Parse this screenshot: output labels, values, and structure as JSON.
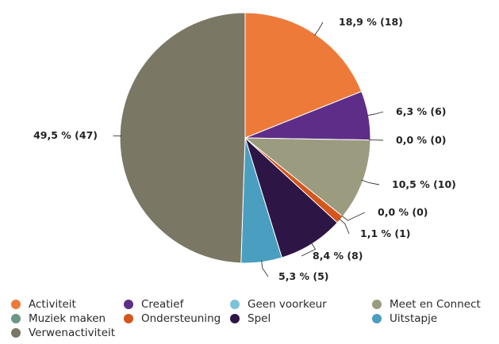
{
  "chart_data": {
    "type": "pie",
    "title": "",
    "slices": [
      {
        "name": "Activiteit",
        "count": 18,
        "percent": 18.9,
        "label": "18,9 % (18)",
        "color": "#EE7A3A"
      },
      {
        "name": "Creatief",
        "count": 6,
        "percent": 6.3,
        "label": "6,3 % (6)",
        "color": "#5E2D87"
      },
      {
        "name": "Geen voorkeur",
        "count": 0,
        "percent": 0.0,
        "label": "0,0 % (0)",
        "color": "#7CC3DA"
      },
      {
        "name": "Meet en Connect",
        "count": 10,
        "percent": 10.5,
        "label": "10,5 % (10)",
        "color": "#9B9B80"
      },
      {
        "name": "Muziek maken",
        "count": 0,
        "percent": 0.0,
        "label": "0,0 % (0)",
        "color": "#6E9684"
      },
      {
        "name": "Ondersteuning",
        "count": 1,
        "percent": 1.1,
        "label": "1,1 % (1)",
        "color": "#D4561C"
      },
      {
        "name": "Spel",
        "count": 8,
        "percent": 8.4,
        "label": "8,4 % (8)",
        "color": "#2D1645"
      },
      {
        "name": "Uitstapje",
        "count": 5,
        "percent": 5.3,
        "label": "5,3 % (5)",
        "color": "#4A9EBF"
      },
      {
        "name": "Verwenactiviteit",
        "count": 47,
        "percent": 49.5,
        "label": "49,5 % (47)",
        "color": "#7A7864"
      }
    ],
    "legend_placement": "bottom"
  }
}
